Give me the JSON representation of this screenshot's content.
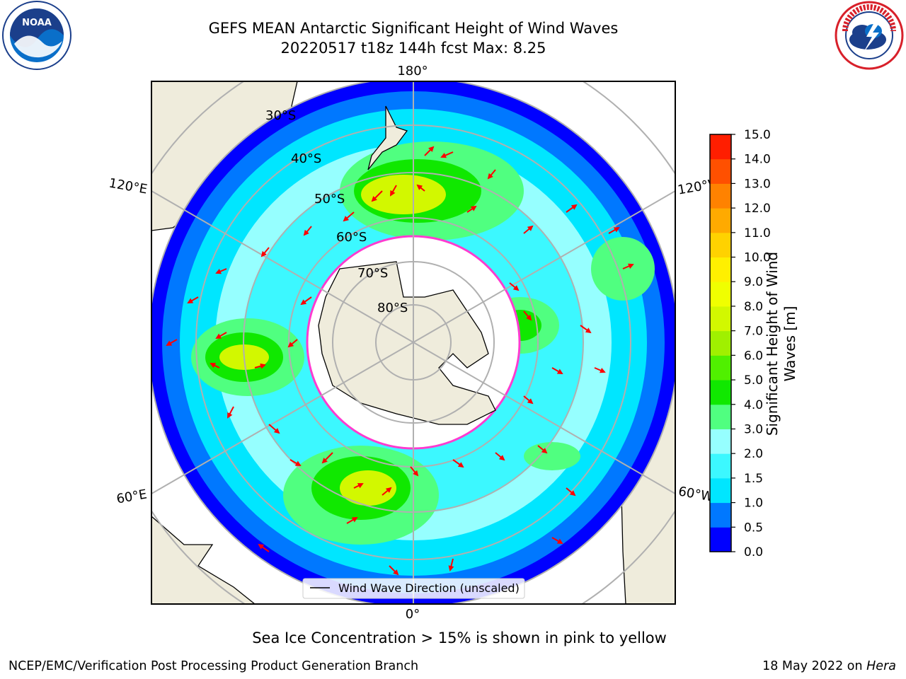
{
  "title": {
    "line1": "GEFS MEAN Antarctic Significant Height of Wind Waves",
    "line2": "20220517 t18z 144h fcst   Max: 8.25"
  },
  "logos": {
    "left": {
      "icon": "noaa-logo",
      "text": "NOAA"
    },
    "right": {
      "icon": "nws-logo",
      "text": "NATIONAL WEATHER SERVICE"
    }
  },
  "map": {
    "projection": "south-polar-stereographic",
    "lon_labels": [
      "180°",
      "120°E",
      "120°W",
      "60°E",
      "60°W",
      "0°"
    ],
    "lat_labels": [
      "30°S",
      "40°S",
      "50°S",
      "60°S",
      "70°S",
      "80°S"
    ],
    "legend": "Wind Wave Direction (unscaled)",
    "colors": {
      "land": "#efecdc",
      "ice_shelf": "#ffffff",
      "sea_ice_edge": "#ff3cd0",
      "arrow": "#ff0000",
      "grid": "#b0b0b0"
    }
  },
  "colorbar": {
    "label": "Significant Height of Wind Waves [m]",
    "ticks": [
      "0.0",
      "0.5",
      "1.0",
      "1.5",
      "2.0",
      "3.0",
      "4.0",
      "5.0",
      "6.0",
      "7.0",
      "8.0",
      "9.0",
      "10.0",
      "11.0",
      "12.0",
      "13.0",
      "14.0",
      "15.0"
    ],
    "colors": [
      "#0000ff",
      "#0078ff",
      "#00e6ff",
      "#3cf8ff",
      "#96ffff",
      "#50ff80",
      "#10e800",
      "#50f000",
      "#a0f000",
      "#d2f800",
      "#f0ff00",
      "#fff000",
      "#ffd200",
      "#ffaa00",
      "#ff8200",
      "#ff5000",
      "#ff1e00"
    ]
  },
  "footer": {
    "note": "Sea Ice Concentration > 15% is shown in pink to yellow",
    "left": "NCEP/EMC/Verification Post Processing Product Generation Branch",
    "right_prefix": "18 May 2022 on ",
    "right_machine": "Hera"
  }
}
